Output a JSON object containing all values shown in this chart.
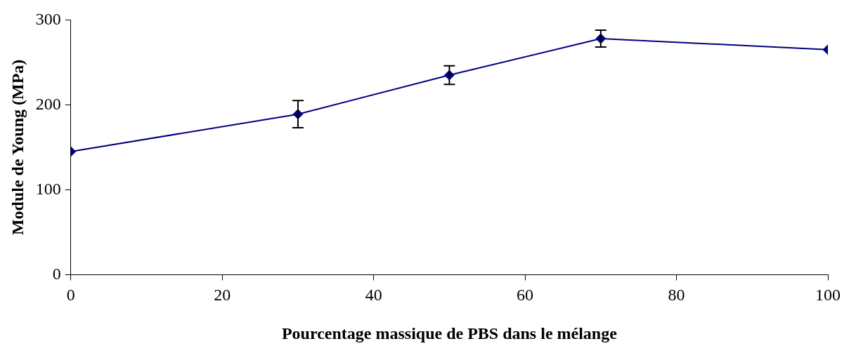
{
  "chart_data": {
    "type": "line",
    "xlabel": "Pourcentage massique de PBS dans le mélange",
    "ylabel": "Module de Young (MPa)",
    "x": [
      0,
      30,
      50,
      70,
      100
    ],
    "series": [
      {
        "color": "#000080",
        "values": [
          145,
          189,
          235,
          278,
          265
        ],
        "errors": [
          null,
          16,
          11,
          10,
          null
        ]
      }
    ],
    "xlim": [
      0,
      100
    ],
    "xticks": [
      0,
      20,
      40,
      60,
      80,
      100
    ],
    "ylim": [
      0,
      300
    ],
    "yticks": [
      0,
      100,
      200,
      300
    ],
    "grid": false,
    "legend": false,
    "marker": "diamond",
    "line_style": "solid"
  }
}
